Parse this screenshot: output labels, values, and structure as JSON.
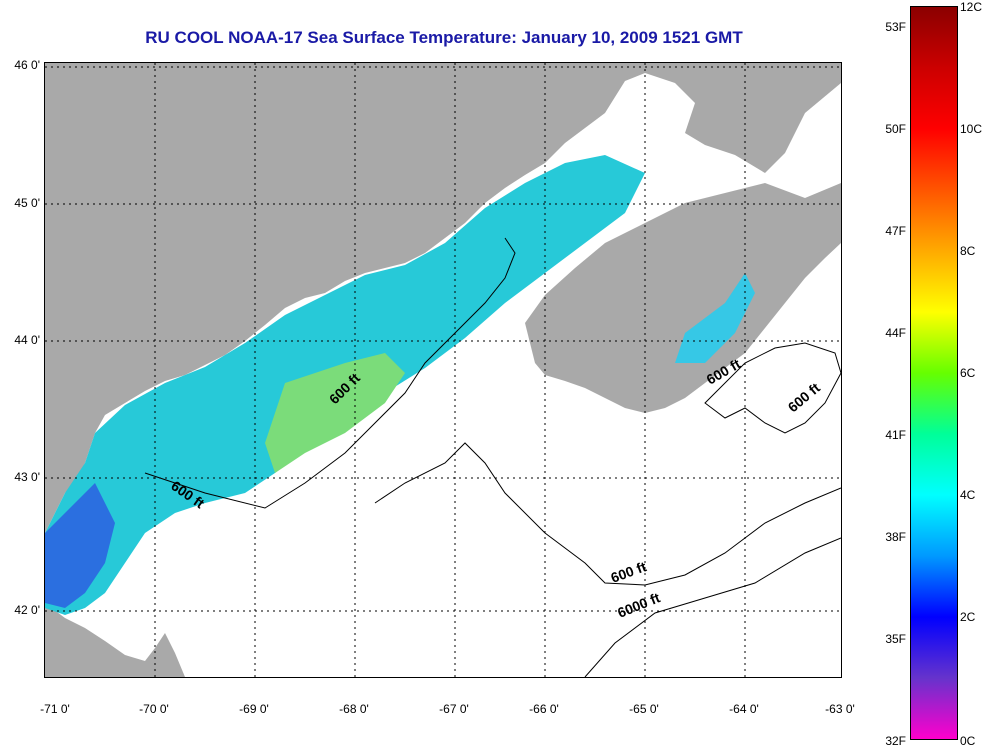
{
  "title": "RU COOL  NOAA-17  Sea Surface Temperature:  January 10, 2009 1521 GMT",
  "map": {
    "lat_labels": [
      "46 0'",
      "45 0'",
      "44 0'",
      "43 0'",
      "42 0'"
    ],
    "lon_labels": [
      "-71 0'",
      "-70 0'",
      "-69 0'",
      "-68 0'",
      "-67 0'",
      "-66 0'",
      "-65 0'",
      "-64 0'",
      "-63 0'"
    ],
    "contour_labels": [
      "600 ft",
      "600 ft",
      "600 ft",
      "600 ft",
      "600 ft",
      "6000 ft"
    ],
    "colors": {
      "land": "#a9a9a9",
      "cloud": "#ffffff",
      "contour": "#000000",
      "grid": "#000000"
    }
  },
  "colorbar": {
    "fahrenheit_labels": [
      "53F",
      "50F",
      "47F",
      "44F",
      "41F",
      "38F",
      "35F",
      "32F"
    ],
    "celsius_labels": [
      "12C",
      "10C",
      "8C",
      "6C",
      "4C",
      "2C",
      "0C"
    ],
    "colors": [
      "#ff00cc",
      "#6633cc",
      "#0000ff",
      "#0099ff",
      "#00ffff",
      "#00ff99",
      "#66ff00",
      "#ffff00",
      "#ffaa00",
      "#ff5500",
      "#ff0000",
      "#cc0000",
      "#8b0000"
    ]
  }
}
